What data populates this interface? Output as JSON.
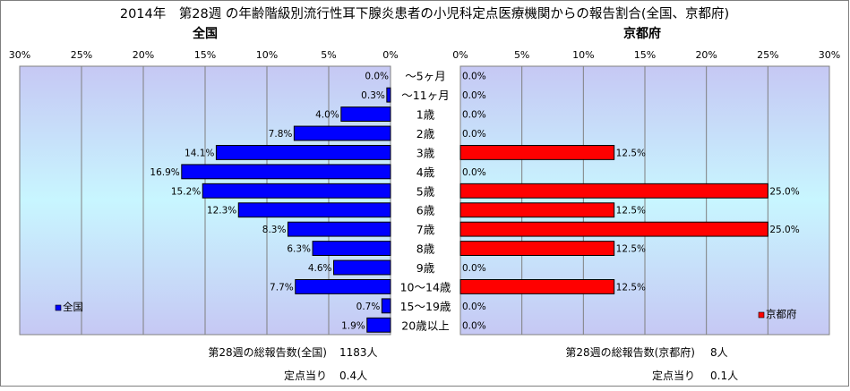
{
  "title": "2014年　第28週 の年齢階級別流行性耳下腺炎患者の小児科定点医療機関からの報告割合(全国、京都府)",
  "chart_data": [
    {
      "type": "bar",
      "orientation": "horizontal",
      "direction": "right-to-left",
      "title": "全国",
      "categories": [
        "～5ヶ月",
        "～11ヶ月",
        "1歳",
        "2歳",
        "3歳",
        "4歳",
        "5歳",
        "6歳",
        "7歳",
        "8歳",
        "9歳",
        "10～14歳",
        "15～19歳",
        "20歳以上"
      ],
      "series": [
        {
          "name": "全国",
          "values": [
            0.0,
            0.3,
            4.0,
            7.8,
            14.1,
            16.9,
            15.2,
            12.3,
            8.3,
            6.3,
            4.6,
            7.7,
            0.7,
            1.9
          ],
          "color": "#0000ff"
        }
      ],
      "data_labels": [
        "0.0%",
        "0.3%",
        "4.0%",
        "7.8%",
        "14.1%",
        "16.9%",
        "15.2%",
        "12.3%",
        "8.3%",
        "6.3%",
        "4.6%",
        "7.7%",
        "0.7%",
        "1.9%"
      ],
      "xlim": [
        0,
        30
      ],
      "tick_labels": [
        "0%",
        "5%",
        "10%",
        "15%",
        "20%",
        "25%",
        "30%"
      ],
      "legend_position": "bottom-left",
      "grid": true
    },
    {
      "type": "bar",
      "orientation": "horizontal",
      "direction": "left-to-right",
      "title": "京都府",
      "categories": [
        "～5ヶ月",
        "～11ヶ月",
        "1歳",
        "2歳",
        "3歳",
        "4歳",
        "5歳",
        "6歳",
        "7歳",
        "8歳",
        "9歳",
        "10～14歳",
        "15～19歳",
        "20歳以上"
      ],
      "series": [
        {
          "name": "京都府",
          "values": [
            0.0,
            0.0,
            0.0,
            0.0,
            12.5,
            0.0,
            25.0,
            12.5,
            25.0,
            12.5,
            0.0,
            12.5,
            0.0,
            0.0
          ],
          "color": "#ff0000"
        }
      ],
      "data_labels": [
        "0.0%",
        "0.0%",
        "0.0%",
        "0.0%",
        "12.5%",
        "0.0%",
        "25.0%",
        "12.5%",
        "25.0%",
        "12.5%",
        "0.0%",
        "12.5%",
        "0.0%",
        "0.0%"
      ],
      "xlim": [
        0,
        30
      ],
      "tick_labels": [
        "0%",
        "5%",
        "10%",
        "15%",
        "20%",
        "25%",
        "30%"
      ],
      "legend_position": "bottom-right",
      "grid": true
    }
  ],
  "footer": {
    "national_total_label": "第28週の総報告数(全国)",
    "national_total_value": "1183人",
    "national_per_label": "定点当り",
    "national_per_value": "0.4人",
    "kyoto_total_label": "第28週の総報告数(京都府)",
    "kyoto_total_value": "8人",
    "kyoto_per_label": "定点当り",
    "kyoto_per_value": "0.1人"
  }
}
